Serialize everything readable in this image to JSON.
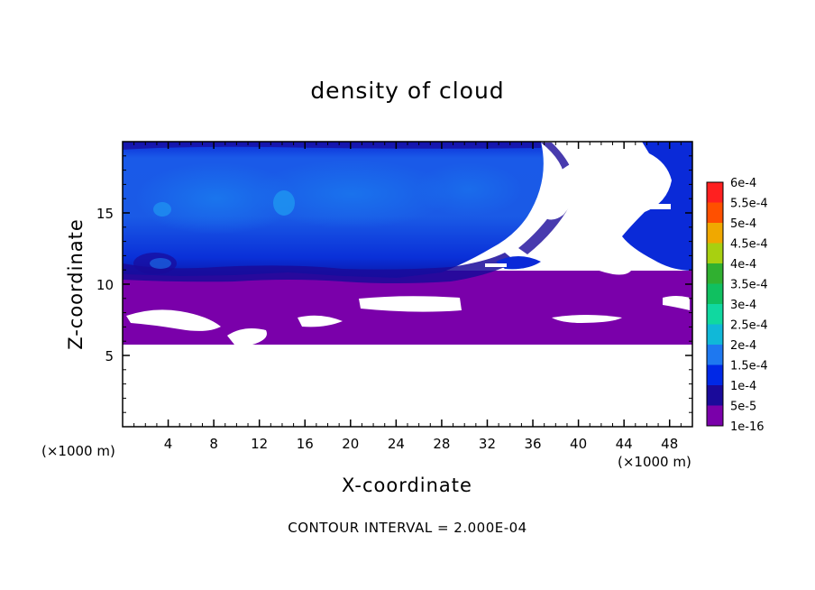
{
  "chart_data": {
    "type": "heatmap",
    "title": "density of cloud",
    "xlabel": "X-coordinate",
    "ylabel": "Z-coordinate",
    "x_unit_label": "(×1000 m)",
    "z_unit_label": "(×1000 m)",
    "footnote": "CONTOUR INTERVAL = 2.000E-04",
    "xlim": [
      0,
      50
    ],
    "ylim": [
      0,
      20
    ],
    "x_ticks": [
      4,
      8,
      12,
      16,
      20,
      24,
      28,
      32,
      36,
      40,
      44,
      48
    ],
    "y_ticks": [
      5,
      10,
      15
    ],
    "colorbar": {
      "levels": [
        "1e-16",
        "5e-5",
        "1e-4",
        "1.5e-4",
        "2e-4",
        "2.5e-4",
        "3e-4",
        "3.5e-4",
        "4e-4",
        "4.5e-4",
        "5e-4",
        "5.5e-4",
        "6e-4"
      ],
      "colors": [
        "#7a00aa",
        "#1a0a9a",
        "#0028e6",
        "#1e78f0",
        "#10b8d8",
        "#10d8a0",
        "#10c060",
        "#30b030",
        "#a8d010",
        "#f0a800",
        "#ff5000",
        "#ff2020",
        "#ff8080"
      ]
    },
    "regions": {
      "no_cloud_below_z": 6,
      "purple_layer_z": [
        6,
        10
      ],
      "blue_layer_z": [
        10,
        19.5
      ]
    }
  }
}
